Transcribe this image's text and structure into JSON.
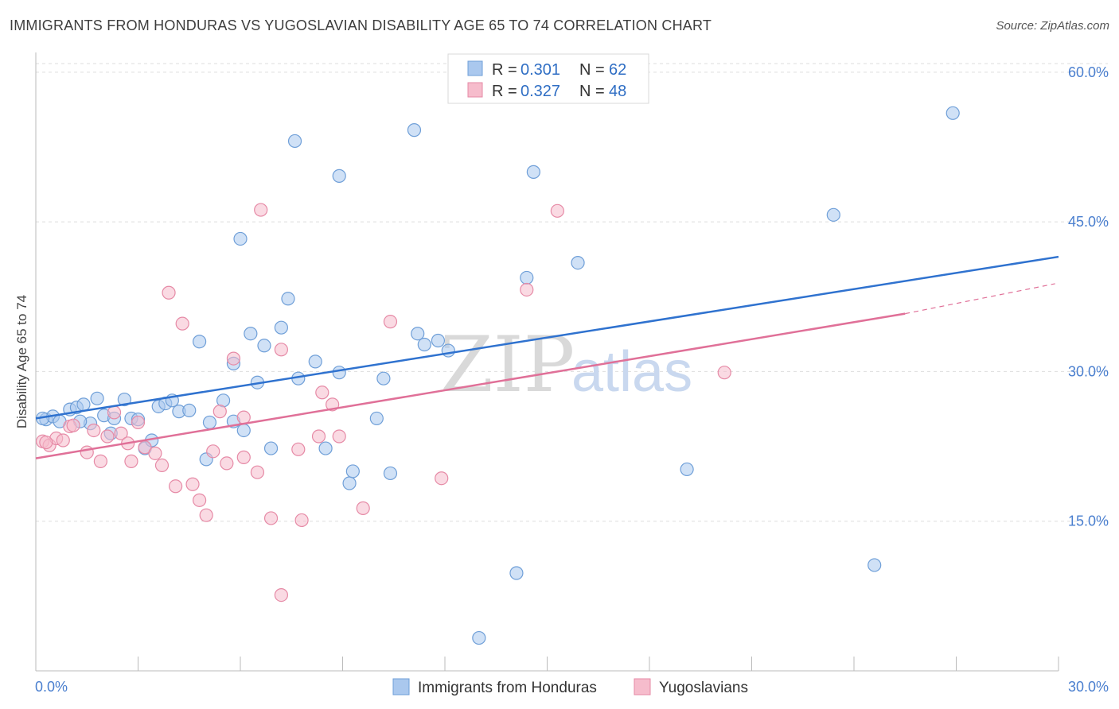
{
  "title": "IMMIGRANTS FROM HONDURAS VS YUGOSLAVIAN DISABILITY AGE 65 TO 74 CORRELATION CHART",
  "source": "Source: ZipAtlas.com",
  "watermark": {
    "zip": "ZIP",
    "atlas": "atlas"
  },
  "colors": {
    "blue_fill": "#aac8ee",
    "blue_stroke": "#6f9fd8",
    "blue_line": "#2f72cf",
    "pink_fill": "#f6bccc",
    "pink_stroke": "#e68aa6",
    "pink_line": "#e07098",
    "grid": "#dddddd",
    "tick": "#4a7fcf"
  },
  "legend": {
    "rows": [
      {
        "r_label": "R = ",
        "r_value": "0.301",
        "n_label": "N = ",
        "n_value": "62"
      },
      {
        "r_label": "R = ",
        "r_value": "0.327",
        "n_label": "N = ",
        "n_value": "48"
      }
    ]
  },
  "bottom_legend": [
    "Immigrants from Honduras",
    "Yugoslavians"
  ],
  "chart_data": {
    "type": "scatter",
    "title": "IMMIGRANTS FROM HONDURAS VS YUGOSLAVIAN DISABILITY AGE 65 TO 74 CORRELATION CHART",
    "xlabel": "",
    "ylabel": "Disability Age 65 to 74",
    "xlim": [
      0,
      30
    ],
    "ylim": [
      0,
      61.5
    ],
    "x_tick_labels": [
      "0.0%",
      "30.0%"
    ],
    "y_ticks": [
      15,
      30,
      45,
      60
    ],
    "y_tick_labels": [
      "15.0%",
      "30.0%",
      "45.0%",
      "60.0%"
    ],
    "series": [
      {
        "name": "Immigrants from Honduras",
        "R": 0.301,
        "N": 62,
        "trend": {
          "x0": 0,
          "y0": 25.3,
          "x1": 30,
          "y1": 41.5
        },
        "points": [
          [
            0.3,
            25.2
          ],
          [
            0.5,
            25.5
          ],
          [
            0.7,
            25.0
          ],
          [
            1.0,
            26.2
          ],
          [
            1.2,
            26.4
          ],
          [
            1.4,
            26.7
          ],
          [
            1.6,
            24.8
          ],
          [
            1.8,
            27.3
          ],
          [
            2.0,
            25.6
          ],
          [
            2.2,
            23.8
          ],
          [
            2.3,
            25.3
          ],
          [
            2.6,
            27.2
          ],
          [
            2.8,
            25.3
          ],
          [
            3.0,
            25.2
          ],
          [
            3.2,
            22.3
          ],
          [
            3.4,
            23.1
          ],
          [
            3.6,
            26.5
          ],
          [
            3.8,
            26.8
          ],
          [
            4.0,
            27.1
          ],
          [
            4.2,
            26.0
          ],
          [
            4.5,
            26.1
          ],
          [
            4.8,
            33.0
          ],
          [
            5.0,
            21.2
          ],
          [
            5.1,
            24.9
          ],
          [
            5.5,
            27.1
          ],
          [
            5.8,
            25.0
          ],
          [
            5.8,
            30.8
          ],
          [
            6.1,
            24.1
          ],
          [
            6.0,
            43.3
          ],
          [
            6.3,
            33.8
          ],
          [
            6.5,
            28.9
          ],
          [
            6.7,
            32.6
          ],
          [
            6.9,
            22.3
          ],
          [
            7.2,
            34.4
          ],
          [
            7.4,
            37.3
          ],
          [
            7.6,
            53.1
          ],
          [
            7.7,
            29.3
          ],
          [
            8.2,
            31.0
          ],
          [
            8.5,
            22.3
          ],
          [
            8.9,
            29.9
          ],
          [
            8.9,
            49.6
          ],
          [
            9.2,
            18.8
          ],
          [
            9.3,
            20.0
          ],
          [
            10.0,
            25.3
          ],
          [
            10.2,
            29.3
          ],
          [
            10.4,
            19.8
          ],
          [
            11.1,
            54.2
          ],
          [
            11.2,
            33.8
          ],
          [
            11.4,
            32.7
          ],
          [
            11.8,
            33.1
          ],
          [
            12.1,
            32.1
          ],
          [
            13.0,
            3.3
          ],
          [
            14.1,
            9.8
          ],
          [
            14.4,
            39.4
          ],
          [
            14.6,
            50.0
          ],
          [
            15.9,
            40.9
          ],
          [
            19.1,
            20.2
          ],
          [
            23.4,
            45.7
          ],
          [
            24.6,
            10.6
          ],
          [
            26.9,
            55.9
          ],
          [
            0.2,
            25.3
          ],
          [
            1.3,
            25.0
          ]
        ]
      },
      {
        "name": "Yugoslavians",
        "R": 0.327,
        "N": 48,
        "trend": {
          "x0": 0,
          "y0": 21.3,
          "x1": 25.5,
          "y1": 35.8
        },
        "trend_ext": {
          "x0": 25.5,
          "y0": 35.8,
          "x1": 29.9,
          "y1": 38.8
        },
        "points": [
          [
            0.2,
            23.0
          ],
          [
            0.4,
            22.6
          ],
          [
            0.6,
            23.3
          ],
          [
            0.8,
            23.1
          ],
          [
            1.0,
            24.5
          ],
          [
            1.1,
            24.6
          ],
          [
            1.5,
            21.9
          ],
          [
            1.7,
            24.1
          ],
          [
            1.9,
            21.0
          ],
          [
            2.1,
            23.5
          ],
          [
            2.3,
            25.9
          ],
          [
            2.5,
            23.8
          ],
          [
            2.7,
            22.8
          ],
          [
            2.8,
            21.0
          ],
          [
            3.0,
            24.9
          ],
          [
            3.2,
            22.4
          ],
          [
            3.5,
            21.8
          ],
          [
            3.7,
            20.6
          ],
          [
            3.9,
            37.9
          ],
          [
            4.1,
            18.5
          ],
          [
            4.3,
            34.8
          ],
          [
            4.6,
            18.7
          ],
          [
            4.8,
            17.1
          ],
          [
            5.0,
            15.6
          ],
          [
            5.2,
            22.0
          ],
          [
            5.4,
            26.0
          ],
          [
            5.6,
            20.8
          ],
          [
            6.1,
            25.4
          ],
          [
            5.8,
            31.3
          ],
          [
            6.1,
            21.4
          ],
          [
            6.5,
            19.9
          ],
          [
            6.6,
            46.2
          ],
          [
            6.9,
            15.3
          ],
          [
            7.2,
            32.2
          ],
          [
            7.2,
            7.6
          ],
          [
            7.7,
            22.2
          ],
          [
            7.8,
            15.1
          ],
          [
            8.3,
            23.5
          ],
          [
            8.4,
            27.9
          ],
          [
            8.7,
            26.7
          ],
          [
            8.9,
            23.5
          ],
          [
            9.6,
            16.3
          ],
          [
            10.4,
            35.0
          ],
          [
            11.9,
            19.3
          ],
          [
            14.4,
            38.2
          ],
          [
            15.3,
            46.1
          ],
          [
            20.2,
            29.9
          ],
          [
            0.3,
            22.9
          ]
        ]
      }
    ]
  }
}
